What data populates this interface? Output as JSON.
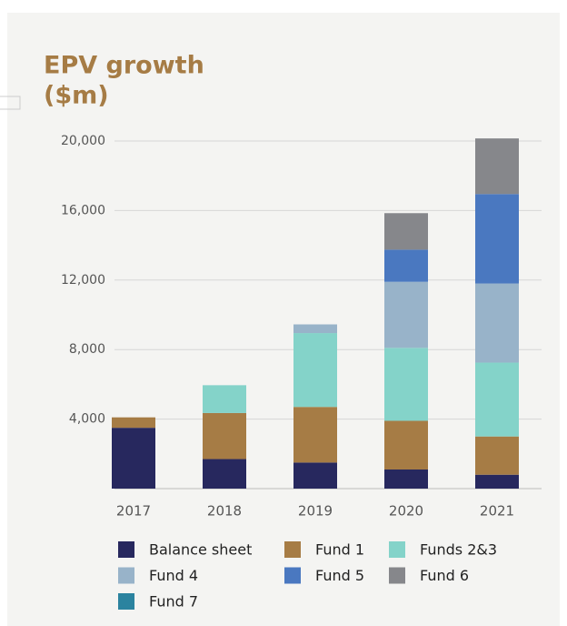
{
  "chart_data": {
    "type": "stacked_bar",
    "title": [
      "EPV growth",
      "($m)"
    ],
    "categories": [
      "2017",
      "2018",
      "2019",
      "2020",
      "2021"
    ],
    "series": [
      {
        "name": "Balance sheet",
        "color": "#27285e",
        "values": [
          3500,
          1700,
          1500,
          1100,
          800
        ]
      },
      {
        "name": "Fund 1",
        "color": "#a67c45",
        "values": [
          600,
          2650,
          3200,
          2800,
          2200
        ]
      },
      {
        "name": "Funds 2&3",
        "color": "#84d3c9",
        "values": [
          0,
          1600,
          4250,
          4200,
          4250
        ]
      },
      {
        "name": "Fund 4",
        "color": "#98b3c9",
        "values": [
          0,
          0,
          500,
          3800,
          4550
        ]
      },
      {
        "name": "Fund 5",
        "color": "#4a78c0",
        "values": [
          0,
          0,
          0,
          1850,
          5150
        ]
      },
      {
        "name": "Fund 6",
        "color": "#86878b",
        "values": [
          0,
          0,
          0,
          2100,
          3200
        ]
      },
      {
        "name": "Fund 7",
        "color": "#2b839f",
        "values": [
          0,
          0,
          0,
          0,
          0
        ]
      }
    ],
    "ylim": [
      0,
      20000
    ],
    "yticks": [
      {
        "value": 4000,
        "label": "4,000"
      },
      {
        "value": 8000,
        "label": "8,000"
      },
      {
        "value": 12000,
        "label": "12,000"
      },
      {
        "value": 16000,
        "label": "16,000"
      },
      {
        "value": 20000,
        "label": "20,000"
      }
    ],
    "grid": true
  }
}
